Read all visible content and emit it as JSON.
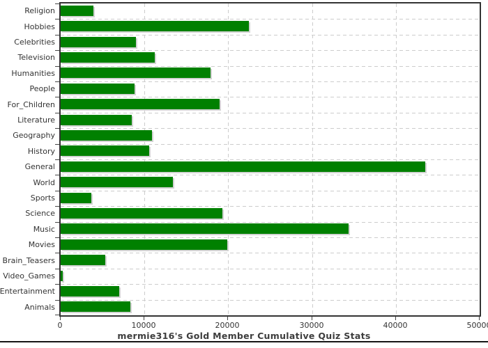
{
  "chart_data": {
    "type": "bar",
    "orientation": "horizontal",
    "title": "mermie316's Gold Member Cumulative Quiz Stats",
    "categories": [
      "Religion",
      "Hobbies",
      "Celebrities",
      "Television",
      "Humanities",
      "People",
      "For_Children",
      "Literature",
      "Geography",
      "History",
      "General",
      "World",
      "Sports",
      "Science",
      "Music",
      "Movies",
      "Brain_Teasers",
      "Video_Games",
      "Entertainment",
      "Animals"
    ],
    "values": [
      3900,
      22500,
      9000,
      11200,
      17900,
      8800,
      19000,
      8500,
      10900,
      10600,
      43500,
      13400,
      3700,
      19300,
      34400,
      19900,
      5300,
      250,
      7000,
      8300
    ],
    "xlabel": "",
    "ylabel": "",
    "xlim": [
      0,
      50000
    ],
    "x_ticks": [
      0,
      10000,
      20000,
      30000,
      40000,
      50000
    ],
    "x_tick_labels": [
      "0",
      "10000",
      "20000",
      "30000",
      "40000",
      "50000"
    ],
    "grid": "dashed, both axes",
    "legend": "none",
    "bar_color": "#008000",
    "bar_shadow_color": "#d3d3d3",
    "gridline_color": "#cccccc",
    "plot_border_color": "#333333",
    "text_color": "#333333",
    "title_color": "#3d3d3d"
  }
}
